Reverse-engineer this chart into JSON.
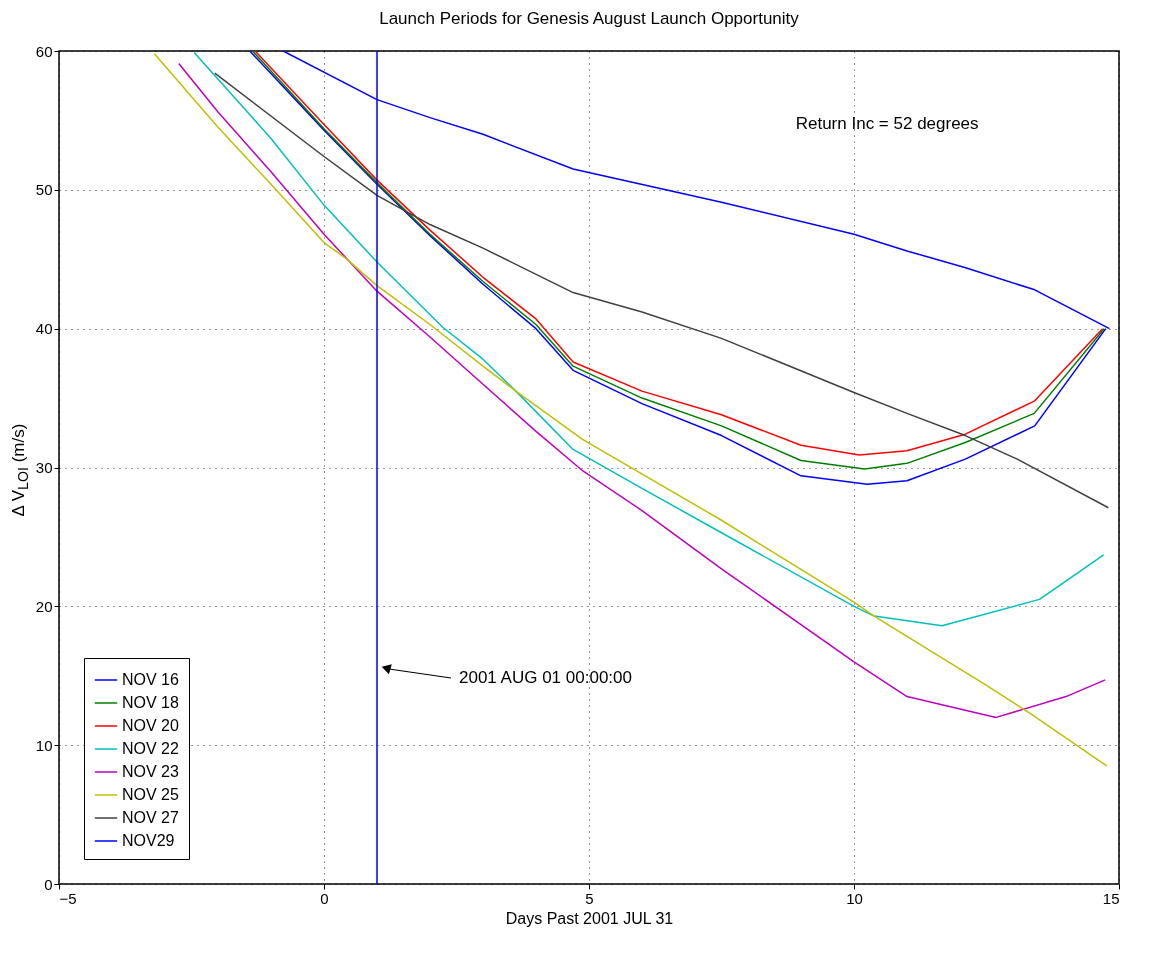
{
  "chart_data": {
    "type": "line",
    "title": "Launch Periods for Genesis August Launch Opportunity",
    "xlabel": "Days Past 2001 JUL 31",
    "ylabel": "Δ V$_{LOI}$ (m/s)",
    "xlim": [
      -5,
      15
    ],
    "xticks": [
      -5,
      0,
      5,
      10,
      15
    ],
    "ylim": [
      0,
      60
    ],
    "yticks": [
      0,
      10,
      20,
      30,
      40,
      50,
      60
    ],
    "grid": true,
    "legend": "bottom left",
    "series": [
      {
        "name": "NOV 16",
        "color": "#0000ff",
        "x": [
          -1.4,
          0,
          1,
          2,
          3,
          4,
          4.7,
          6,
          7.5,
          9,
          10.25,
          11,
          12.1,
          13.41,
          14.75
        ],
        "values": [
          60,
          54.3,
          50.4,
          46.7,
          43.2,
          40.0,
          37.0,
          34.6,
          32.3,
          29.4,
          28.8,
          29.05,
          30.6,
          33.0,
          40.0
        ]
      },
      {
        "name": "NOV 18",
        "color": "#008000",
        "x": [
          -1.35,
          0,
          1,
          2,
          3,
          4,
          4.7,
          6,
          7.5,
          9,
          10.2,
          11,
          12.1,
          13.4,
          14.72
        ],
        "values": [
          60,
          54.4,
          50.5,
          46.8,
          43.4,
          40.3,
          37.3,
          35.0,
          33.0,
          30.5,
          29.9,
          30.3,
          31.8,
          33.9,
          40.0
        ]
      },
      {
        "name": "NOV 20",
        "color": "#ff0000",
        "x": [
          -1.3,
          0,
          1,
          2,
          3,
          4,
          4.7,
          6,
          7.5,
          9,
          10.1,
          11,
          12.1,
          13.41,
          14.69
        ],
        "values": [
          60,
          54.7,
          50.7,
          47.1,
          43.7,
          40.7,
          37.6,
          35.5,
          33.8,
          31.6,
          30.9,
          31.2,
          32.4,
          34.8,
          40.0
        ]
      },
      {
        "name": "NOV 22",
        "color": "#00bfbf",
        "x": [
          -2.45,
          -1,
          0,
          1,
          2.24,
          3,
          3.62,
          4.7,
          6,
          7.5,
          10,
          10.38,
          11.66,
          13.5,
          14.71
        ],
        "values": [
          59.9,
          53.7,
          48.9,
          44.8,
          40.1,
          37.8,
          35.5,
          31.3,
          28.5,
          25.3,
          20.0,
          19.3,
          18.6,
          20.5,
          23.7
        ]
      },
      {
        "name": "NOV 23",
        "color": "#bf00bf",
        "x": [
          -2.74,
          -2,
          -1,
          0,
          1,
          2,
          3,
          4,
          4.87,
          6,
          7.5,
          10,
          11,
          12.68,
          14,
          14.74
        ],
        "values": [
          59.1,
          55.6,
          51.3,
          46.8,
          42.7,
          39.4,
          36.0,
          32.6,
          29.8,
          26.9,
          22.7,
          16.0,
          13.5,
          12.0,
          13.5,
          14.7
        ]
      },
      {
        "name": "NOV 25",
        "color": "#bfbf00",
        "x": [
          -3.2,
          -2,
          -1,
          0,
          0.4,
          1,
          2,
          3,
          3.62,
          4.87,
          7.5,
          10,
          10.38,
          12.5,
          13.33,
          14.77
        ],
        "values": [
          59.8,
          54.5,
          50.4,
          46.2,
          45.1,
          43.1,
          40.3,
          37.3,
          35.5,
          32.05,
          26.2,
          20.3,
          19.3,
          14.3,
          12.27,
          8.5
        ]
      },
      {
        "name": "NOV 27",
        "color": "#404040",
        "x": [
          -2.06,
          0,
          1,
          2,
          3,
          4.7,
          6,
          7.5,
          10,
          11,
          12.1,
          13.08,
          14.8
        ],
        "values": [
          58.4,
          52.4,
          49.6,
          47.5,
          45.8,
          42.6,
          41.2,
          39.3,
          35.4,
          33.9,
          32.3,
          30.6,
          27.1
        ]
      },
      {
        "name": "NOV29",
        "color": "#0000ff",
        "x": [
          -0.77,
          1,
          2,
          3,
          4.7,
          7.5,
          10,
          11,
          12.09,
          13.41,
          14.82
        ],
        "values": [
          60,
          56.5,
          55.2,
          54.0,
          51.5,
          49.1,
          46.8,
          45.6,
          44.4,
          42.8,
          40.0
        ]
      }
    ],
    "ref_lines": [
      {
        "axis": "x",
        "value": 1,
        "color": "#0000ff"
      }
    ],
    "annotations": [
      "Return Inc = 52 degrees",
      "2001 AUG 01 00:00:00"
    ]
  }
}
